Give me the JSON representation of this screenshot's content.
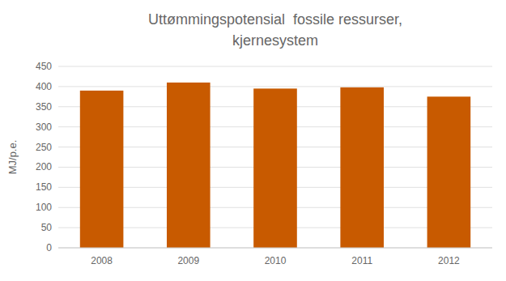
{
  "chart_data": {
    "type": "bar",
    "title": "Uttømmingspotensial  fossile ressurser,",
    "subtitle": "kjernesystem",
    "y_label": "MJ/p.e.",
    "categories": [
      "2008",
      "2009",
      "2010",
      "2011",
      "2012"
    ],
    "values": [
      390,
      410,
      395,
      398,
      375
    ],
    "color": "#c85a00",
    "ylim": [
      0,
      450
    ],
    "yticks": [
      0,
      50,
      100,
      150,
      200,
      250,
      300,
      350,
      400,
      450
    ],
    "grid": true
  }
}
